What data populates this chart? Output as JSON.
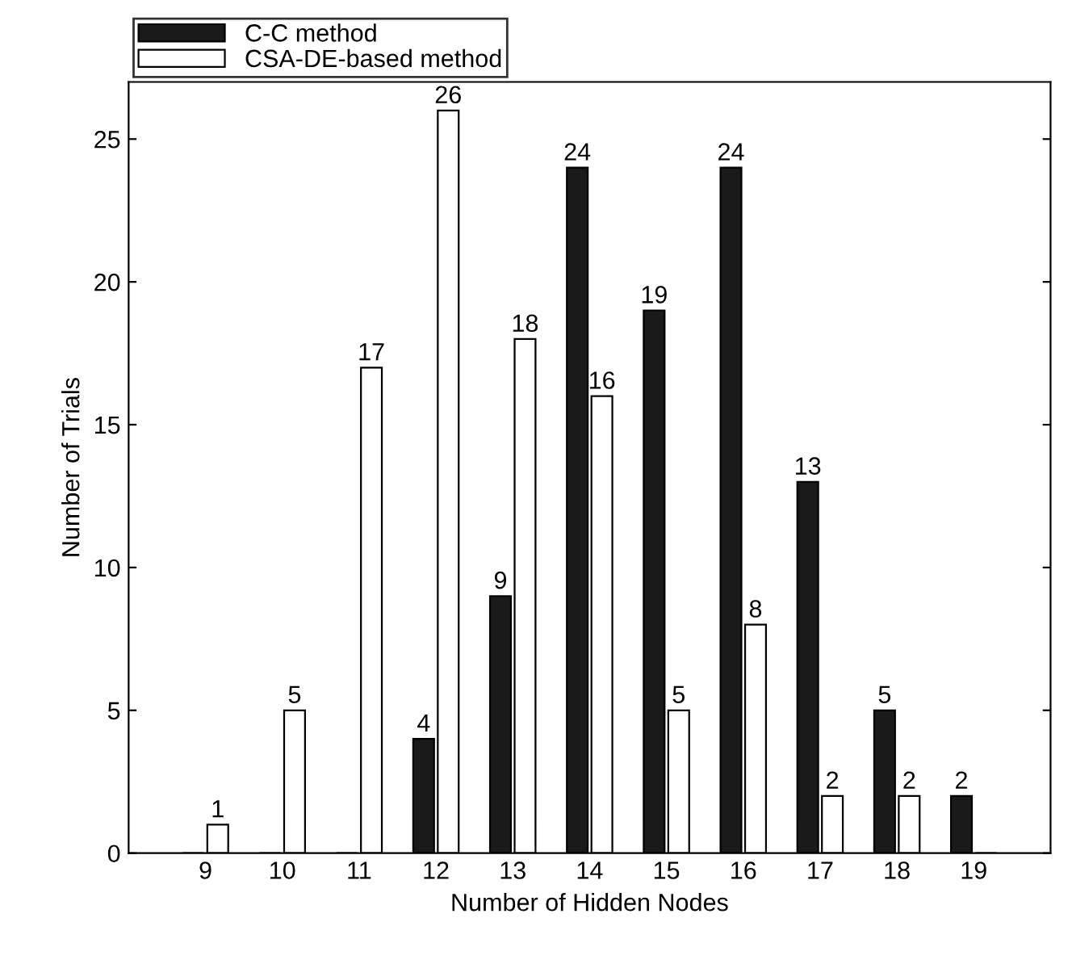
{
  "chart_data": {
    "type": "bar",
    "xlabel": "Number of Hidden Nodes",
    "ylabel": "Number of Trials",
    "categories": [
      "9",
      "10",
      "11",
      "12",
      "13",
      "14",
      "15",
      "16",
      "17",
      "18",
      "19"
    ],
    "series": [
      {
        "name": "C-C method",
        "color": "#1a1a1a",
        "values": [
          0,
          0,
          0,
          4,
          9,
          24,
          19,
          24,
          13,
          5,
          2
        ],
        "value_labels": [
          null,
          null,
          null,
          "4",
          "9",
          "24",
          "19",
          "24",
          "13",
          "5",
          "2"
        ]
      },
      {
        "name": "CSA-DE-based method",
        "color": "#ffffff",
        "values": [
          1,
          5,
          17,
          26,
          18,
          16,
          5,
          8,
          2,
          2,
          0
        ],
        "value_labels": [
          "1",
          "5",
          "17",
          "26",
          "18",
          "16",
          "5",
          "8",
          "2",
          "2",
          null
        ]
      }
    ],
    "ylim": [
      0,
      27
    ],
    "yticks": [
      0,
      5,
      10,
      15,
      20,
      25
    ],
    "grid": false,
    "legend": "top left"
  }
}
